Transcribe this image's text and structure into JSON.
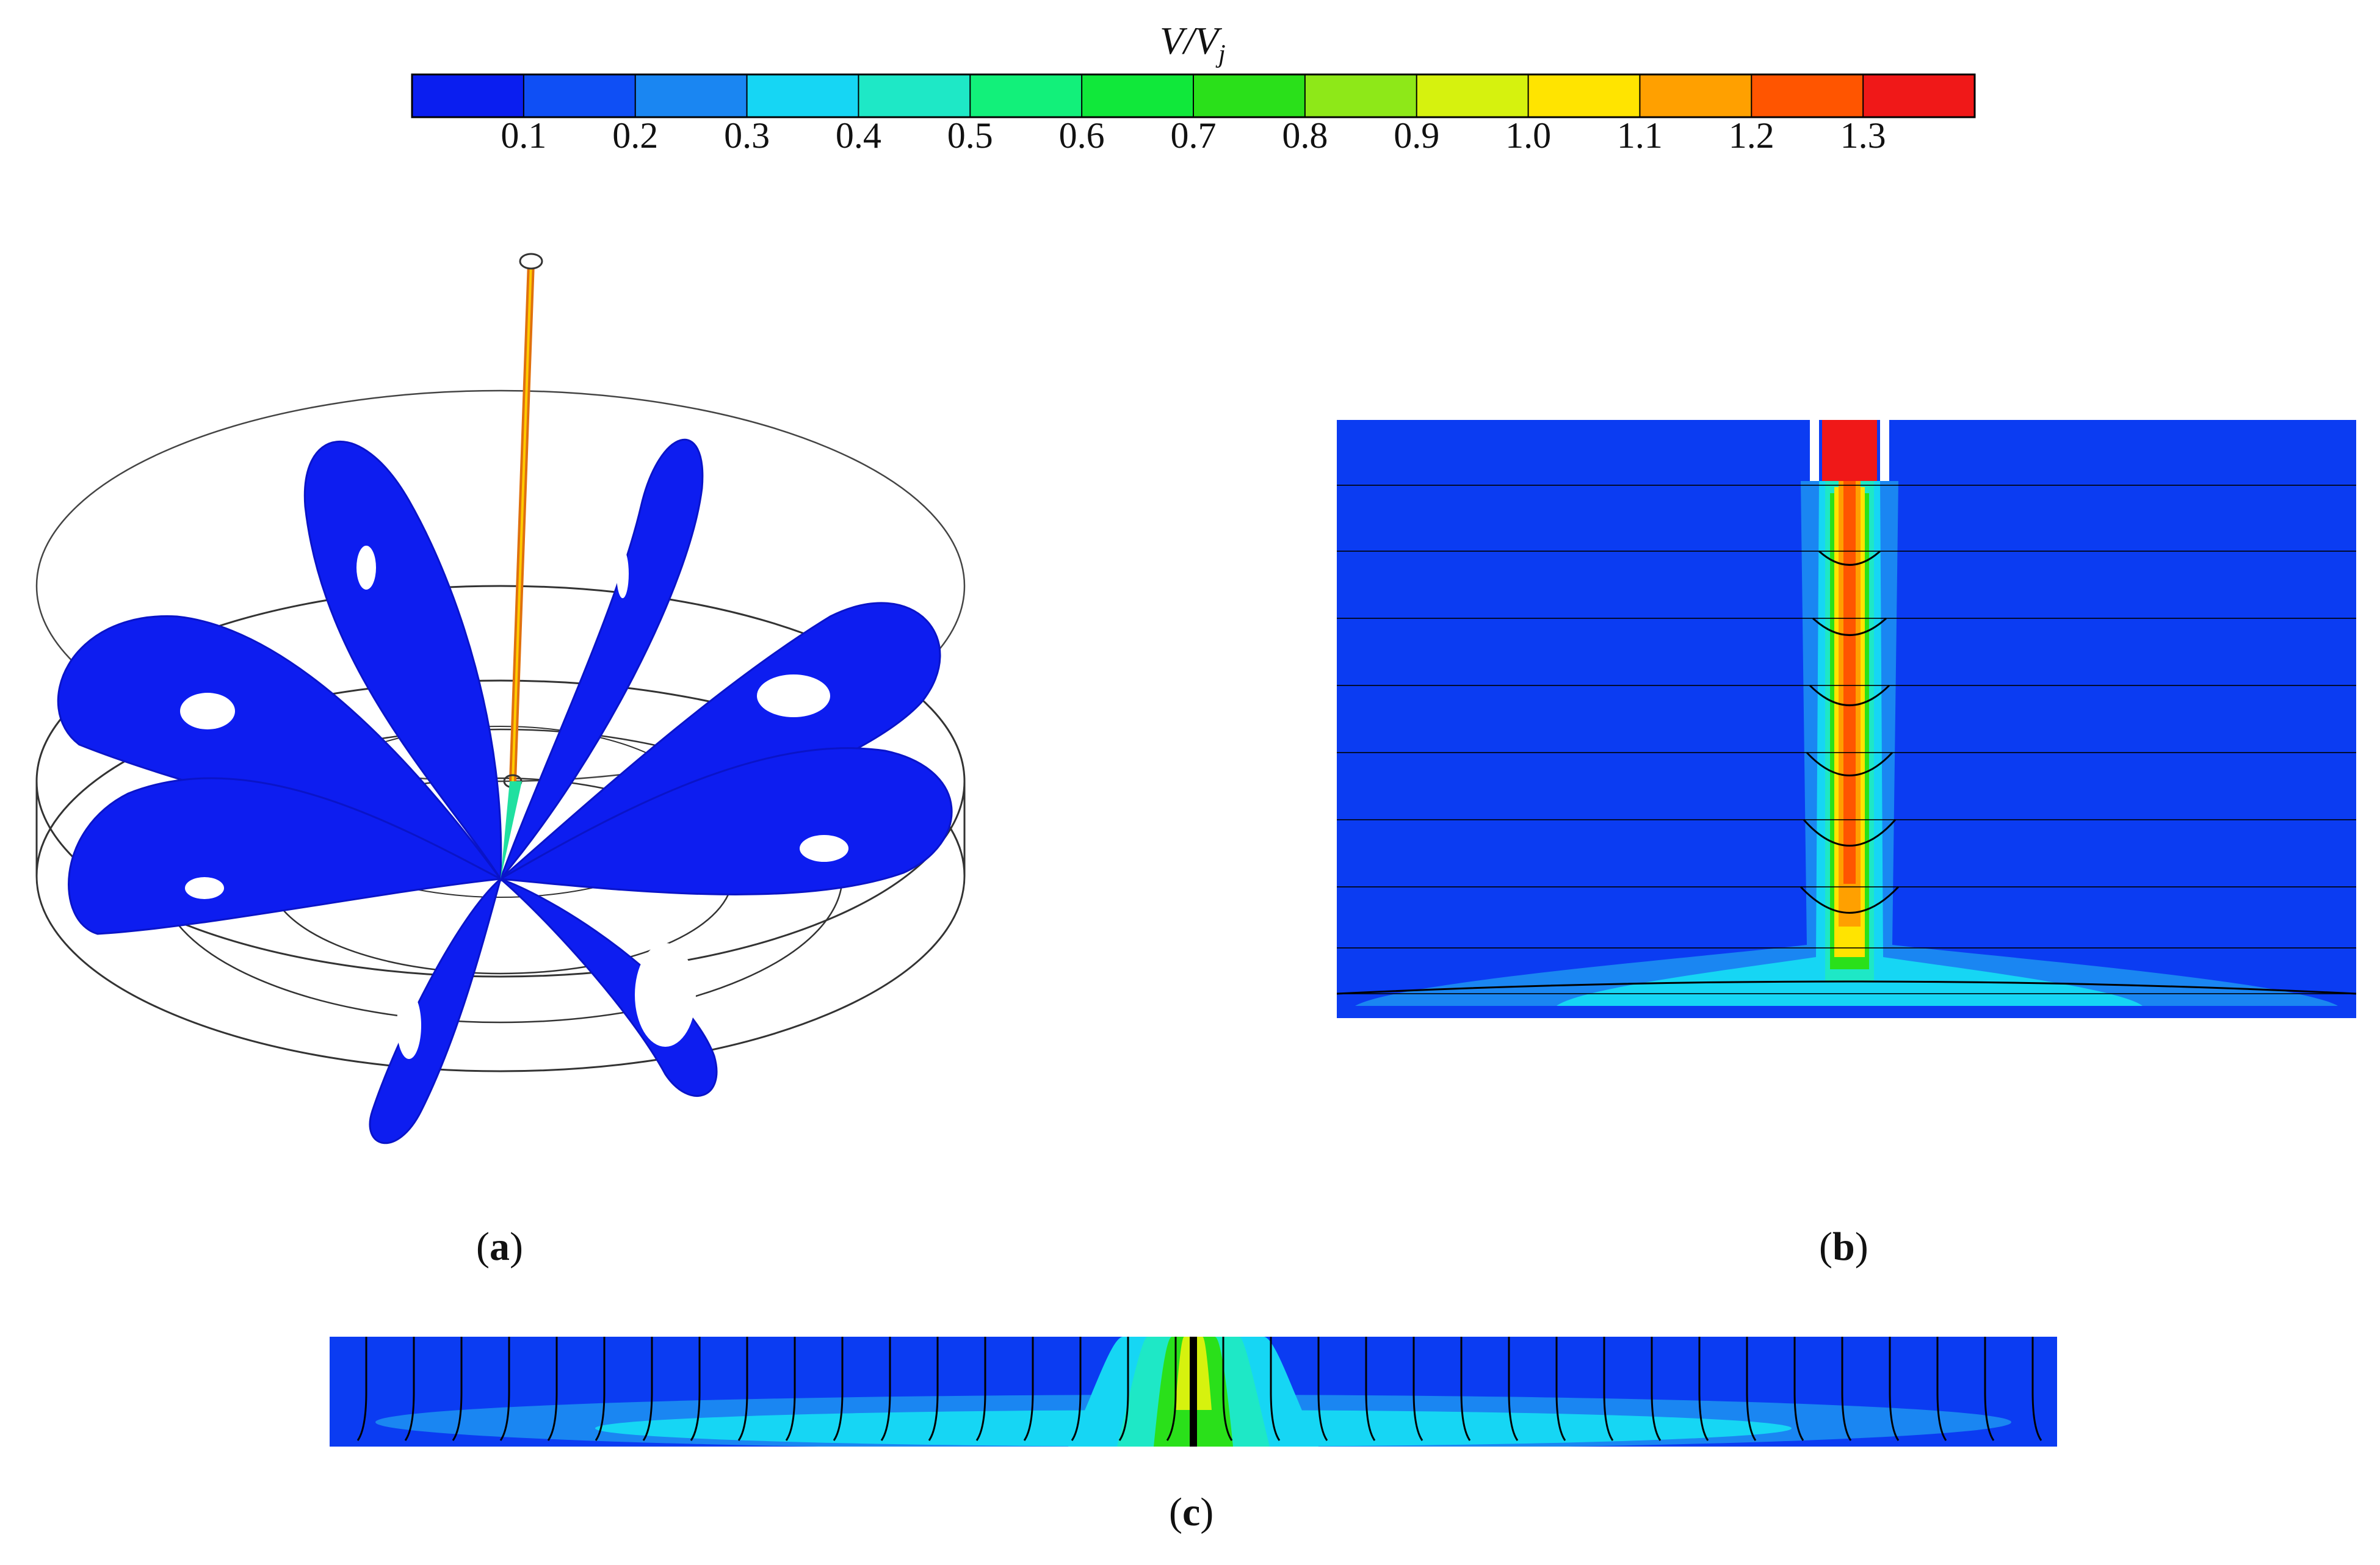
{
  "colorbar": {
    "title": "V/V",
    "title_subscript": "j",
    "ticks": [
      "0.1",
      "0.2",
      "0.3",
      "0.4",
      "0.5",
      "0.6",
      "0.7",
      "0.8",
      "0.9",
      "1.0",
      "1.1",
      "1.2",
      "1.3"
    ],
    "colors": [
      "#0a1ef0",
      "#0f4ff5",
      "#1a86f2",
      "#16d6f4",
      "#1ee8c6",
      "#12f07a",
      "#10e83a",
      "#2ae01a",
      "#8ee818",
      "#d6f20e",
      "#ffe400",
      "#ffa000",
      "#ff5500",
      "#f01818"
    ]
  },
  "panels": {
    "a": {
      "label": "a",
      "palette": {
        "streamline": "#0d1df0",
        "jet": "#e05a10"
      }
    },
    "b": {
      "label": "b",
      "palette": {
        "background": "#0b3cf2"
      }
    },
    "c": {
      "label": "c",
      "palette": {
        "background": "#0b3cf2"
      }
    }
  }
}
